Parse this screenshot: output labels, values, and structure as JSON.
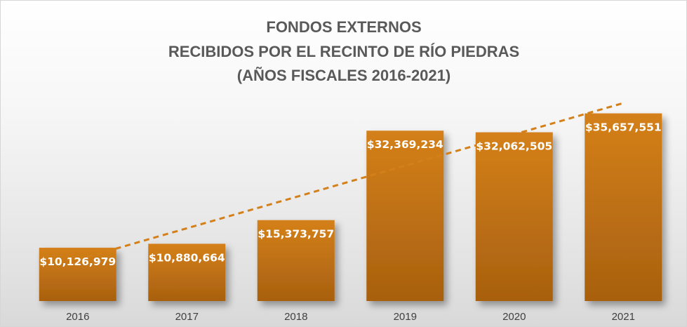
{
  "chart_data": {
    "type": "bar",
    "title": [
      "FONDOS EXTERNOS",
      "RECIBIDOS POR EL RECINTO DE RÍO PIEDRAS",
      "(AÑOS FISCALES 2016-2021)"
    ],
    "categories": [
      "2016",
      "2017",
      "2018",
      "2019",
      "2020",
      "2021"
    ],
    "values": [
      10126979,
      10880664,
      15373757,
      32369234,
      32062505,
      35657551
    ],
    "data_labels": [
      "$10,126,979",
      "$10,880,664",
      "$15,373,757",
      "$32,369,234",
      "$32,062,505",
      "$35,657,551"
    ],
    "ylim": [
      0,
      40000000
    ],
    "trendline": "linear",
    "grid": false,
    "legend": false,
    "colors": {
      "bar_top": "#d4801a",
      "bar_bottom": "#a8600f",
      "trend": "#d4801a",
      "title": "#595959"
    }
  }
}
